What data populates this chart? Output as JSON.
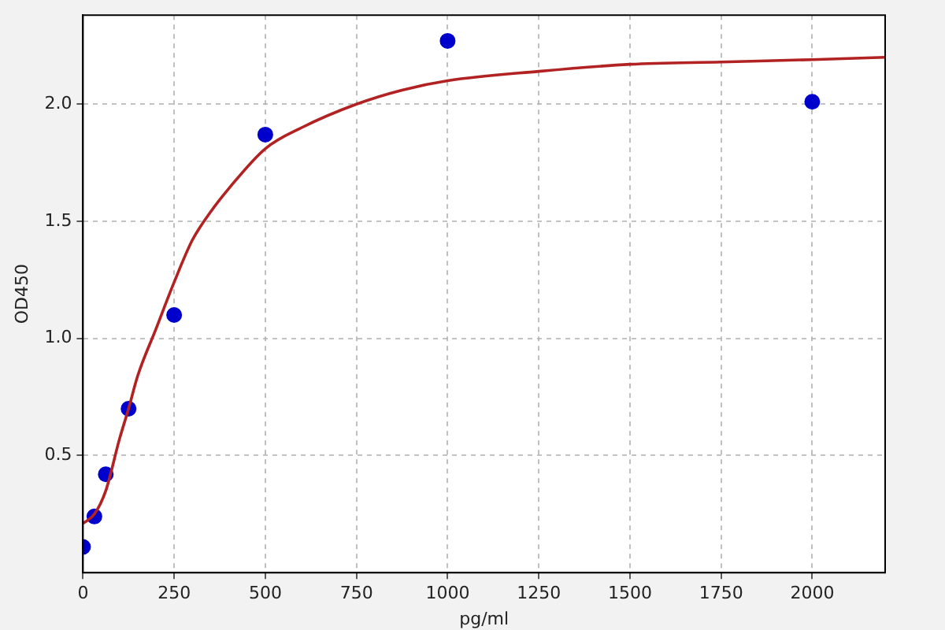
{
  "chart_data": {
    "type": "scatter",
    "xlabel": "pg/ml",
    "ylabel": "OD450",
    "xlim": [
      0,
      2200
    ],
    "xticks": [
      0,
      250,
      500,
      750,
      1000,
      1250,
      1500,
      1750,
      2000
    ],
    "ylim": [
      0,
      2.38
    ],
    "yticks": [
      {
        "value": 0.5,
        "label": "0.5"
      },
      {
        "value": 1,
        "label": "1.0"
      },
      {
        "value": 1.5,
        "label": "1.5"
      },
      {
        "value": 2,
        "label": "2.0"
      }
    ],
    "grid": true,
    "legend": false,
    "series": [
      {
        "type": "line",
        "color": "#b22222",
        "marker": "none",
        "line_style": "solid",
        "x": [
          0,
          31.25,
          62.5,
          100,
          125,
          150,
          200,
          250,
          300,
          350,
          400,
          500,
          600,
          750,
          875,
          1000,
          1250,
          1500,
          1750,
          2000,
          2200
        ],
        "values": [
          0.21,
          0.25,
          0.35,
          0.57,
          0.7,
          0.84,
          1.04,
          1.24,
          1.42,
          1.54,
          1.64,
          1.81,
          1.9,
          2.0,
          2.06,
          2.1,
          2.14,
          2.17,
          2.18,
          2.19,
          2.2
        ]
      },
      {
        "color": "#0000cc",
        "marker": "circle",
        "x": [
          0,
          31.25,
          62.5,
          125,
          250,
          500,
          1000,
          2000
        ],
        "values": [
          0.11,
          0.24,
          0.42,
          0.7,
          1.1,
          1.87,
          2.27,
          2.01
        ]
      }
    ]
  }
}
